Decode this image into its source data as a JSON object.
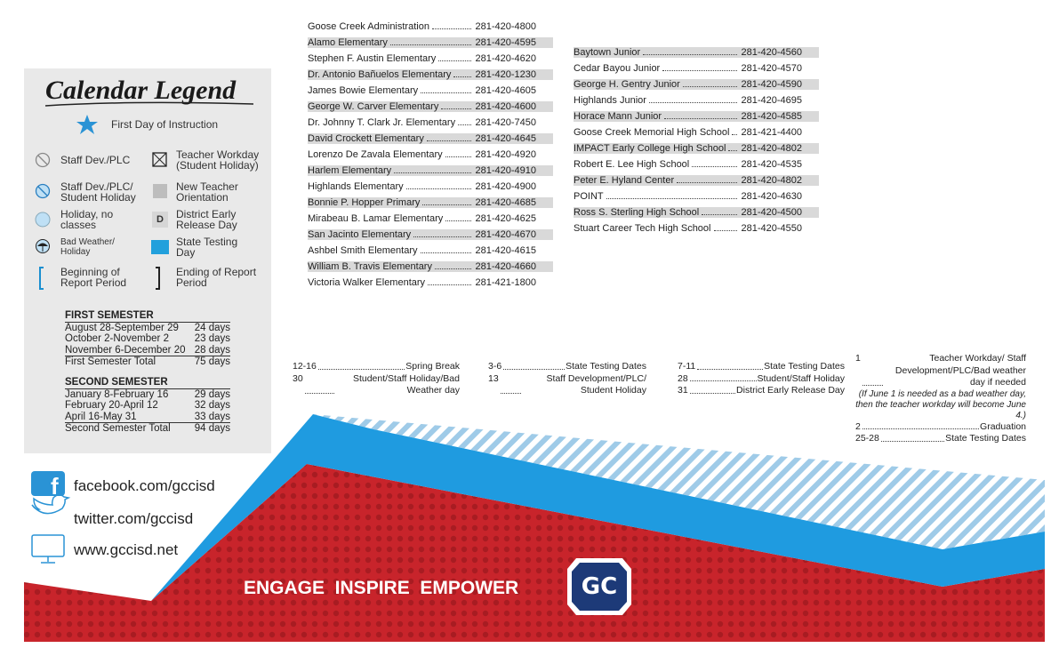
{
  "legend": {
    "title": "Calendar Legend",
    "items": [
      {
        "label": "First Day of Instruction"
      },
      {
        "label": "Staff Dev./PLC"
      },
      {
        "label": "Teacher Workday (Student Holiday)"
      },
      {
        "label": "Staff Dev./PLC/ Student Holiday"
      },
      {
        "label": "New Teacher Orientation"
      },
      {
        "label": "Holiday, no classes"
      },
      {
        "mark": "D",
        "label": "District Early Release Day"
      },
      {
        "label": "Bad Weather/ Holiday"
      },
      {
        "label": "State Testing Day"
      },
      {
        "label": "Beginning of Report Period"
      },
      {
        "label": "Ending of Report Period"
      }
    ]
  },
  "semesters": [
    {
      "heading": "FIRST SEMESTER",
      "rows": [
        [
          "August 28-September 29",
          "24 days"
        ],
        [
          "October 2-November 2",
          "23 days"
        ],
        [
          "November 6-December 20",
          "28 days"
        ]
      ],
      "total": [
        "First Semester Total",
        "75 days"
      ]
    },
    {
      "heading": "SECOND SEMESTER",
      "rows": [
        [
          "January 8-February 16",
          "29 days"
        ],
        [
          "February 20-April 12",
          "32 days"
        ],
        [
          "April 16-May 31",
          "33 days"
        ]
      ],
      "total": [
        "Second Semester Total",
        "94 days"
      ]
    }
  ],
  "social": [
    "facebook.com/gccisd",
    "twitter.com/gccisd",
    "www.gccisd.net"
  ],
  "directory": [
    [
      [
        "Goose Creek Administration",
        "281-420-4800"
      ],
      [
        "Alamo Elementary",
        "281-420-4595"
      ],
      [
        "Stephen F. Austin Elementary",
        "281-420-4620"
      ],
      [
        "Dr. Antonio Bañuelos Elementary",
        "281-420-1230"
      ],
      [
        "James Bowie Elementary",
        "281-420-4605"
      ],
      [
        "George W. Carver Elementary",
        "281-420-4600"
      ],
      [
        "Dr. Johnny T. Clark Jr. Elementary",
        "281-420-7450"
      ],
      [
        "David Crockett Elementary",
        "281-420-4645"
      ],
      [
        "Lorenzo De Zavala Elementary",
        "281-420-4920"
      ],
      [
        "Harlem Elementary",
        "281-420-4910"
      ],
      [
        "Highlands Elementary",
        "281-420-4900"
      ],
      [
        "Bonnie P. Hopper Primary",
        "281-420-4685"
      ],
      [
        "Mirabeau B. Lamar Elementary",
        "281-420-4625"
      ],
      [
        "San Jacinto Elementary",
        "281-420-4670"
      ],
      [
        "Ashbel Smith Elementary",
        "281-420-4615"
      ],
      [
        "William B. Travis Elementary",
        "281-420-4660"
      ],
      [
        "Victoria Walker Elementary",
        "281-421-1800"
      ]
    ],
    [
      [
        "Baytown Junior",
        "281-420-4560"
      ],
      [
        "Cedar Bayou Junior",
        "281-420-4570"
      ],
      [
        "George H. Gentry Junior",
        "281-420-4590"
      ],
      [
        "Highlands Junior",
        "281-420-4695"
      ],
      [
        "Horace Mann Junior",
        "281-420-4585"
      ],
      [
        "Goose Creek Memorial High School",
        "281-421-4400"
      ],
      [
        "IMPACT Early College High School",
        "281-420-4802"
      ],
      [
        "Robert E. Lee High School",
        "281-420-4535"
      ],
      [
        "Peter E. Hyland Center",
        "281-420-4802"
      ],
      [
        "POINT",
        "281-420-4630"
      ],
      [
        "Ross S. Sterling High School",
        "281-420-4500"
      ],
      [
        "Stuart Career Tech High School",
        "281-420-4550"
      ]
    ]
  ],
  "events": [
    [
      [
        "12-16",
        "Spring Break"
      ],
      [
        "30",
        "Student/Staff Holiday/Bad Weather day"
      ]
    ],
    [
      [
        "3-6",
        "State Testing Dates"
      ],
      [
        "13",
        "Staff Development/PLC/ Student Holiday"
      ]
    ],
    [
      [
        "7-11",
        "State Testing Dates"
      ],
      [
        "28",
        "Student/Staff Holiday"
      ],
      [
        "31",
        "District Early Release Day"
      ]
    ],
    [
      [
        "1",
        "Teacher Workday/ Staff Development/PLC/Bad weather day if needed"
      ],
      [
        "2",
        "Graduation"
      ],
      [
        "25-28",
        "State Testing Dates"
      ]
    ]
  ],
  "events_note": "(If June 1 is needed as a bad weather day, then the teacher workday will become June 4.)",
  "tagline": "ENGAGE  INSPIRE  EMPOWER",
  "logo": "GC"
}
